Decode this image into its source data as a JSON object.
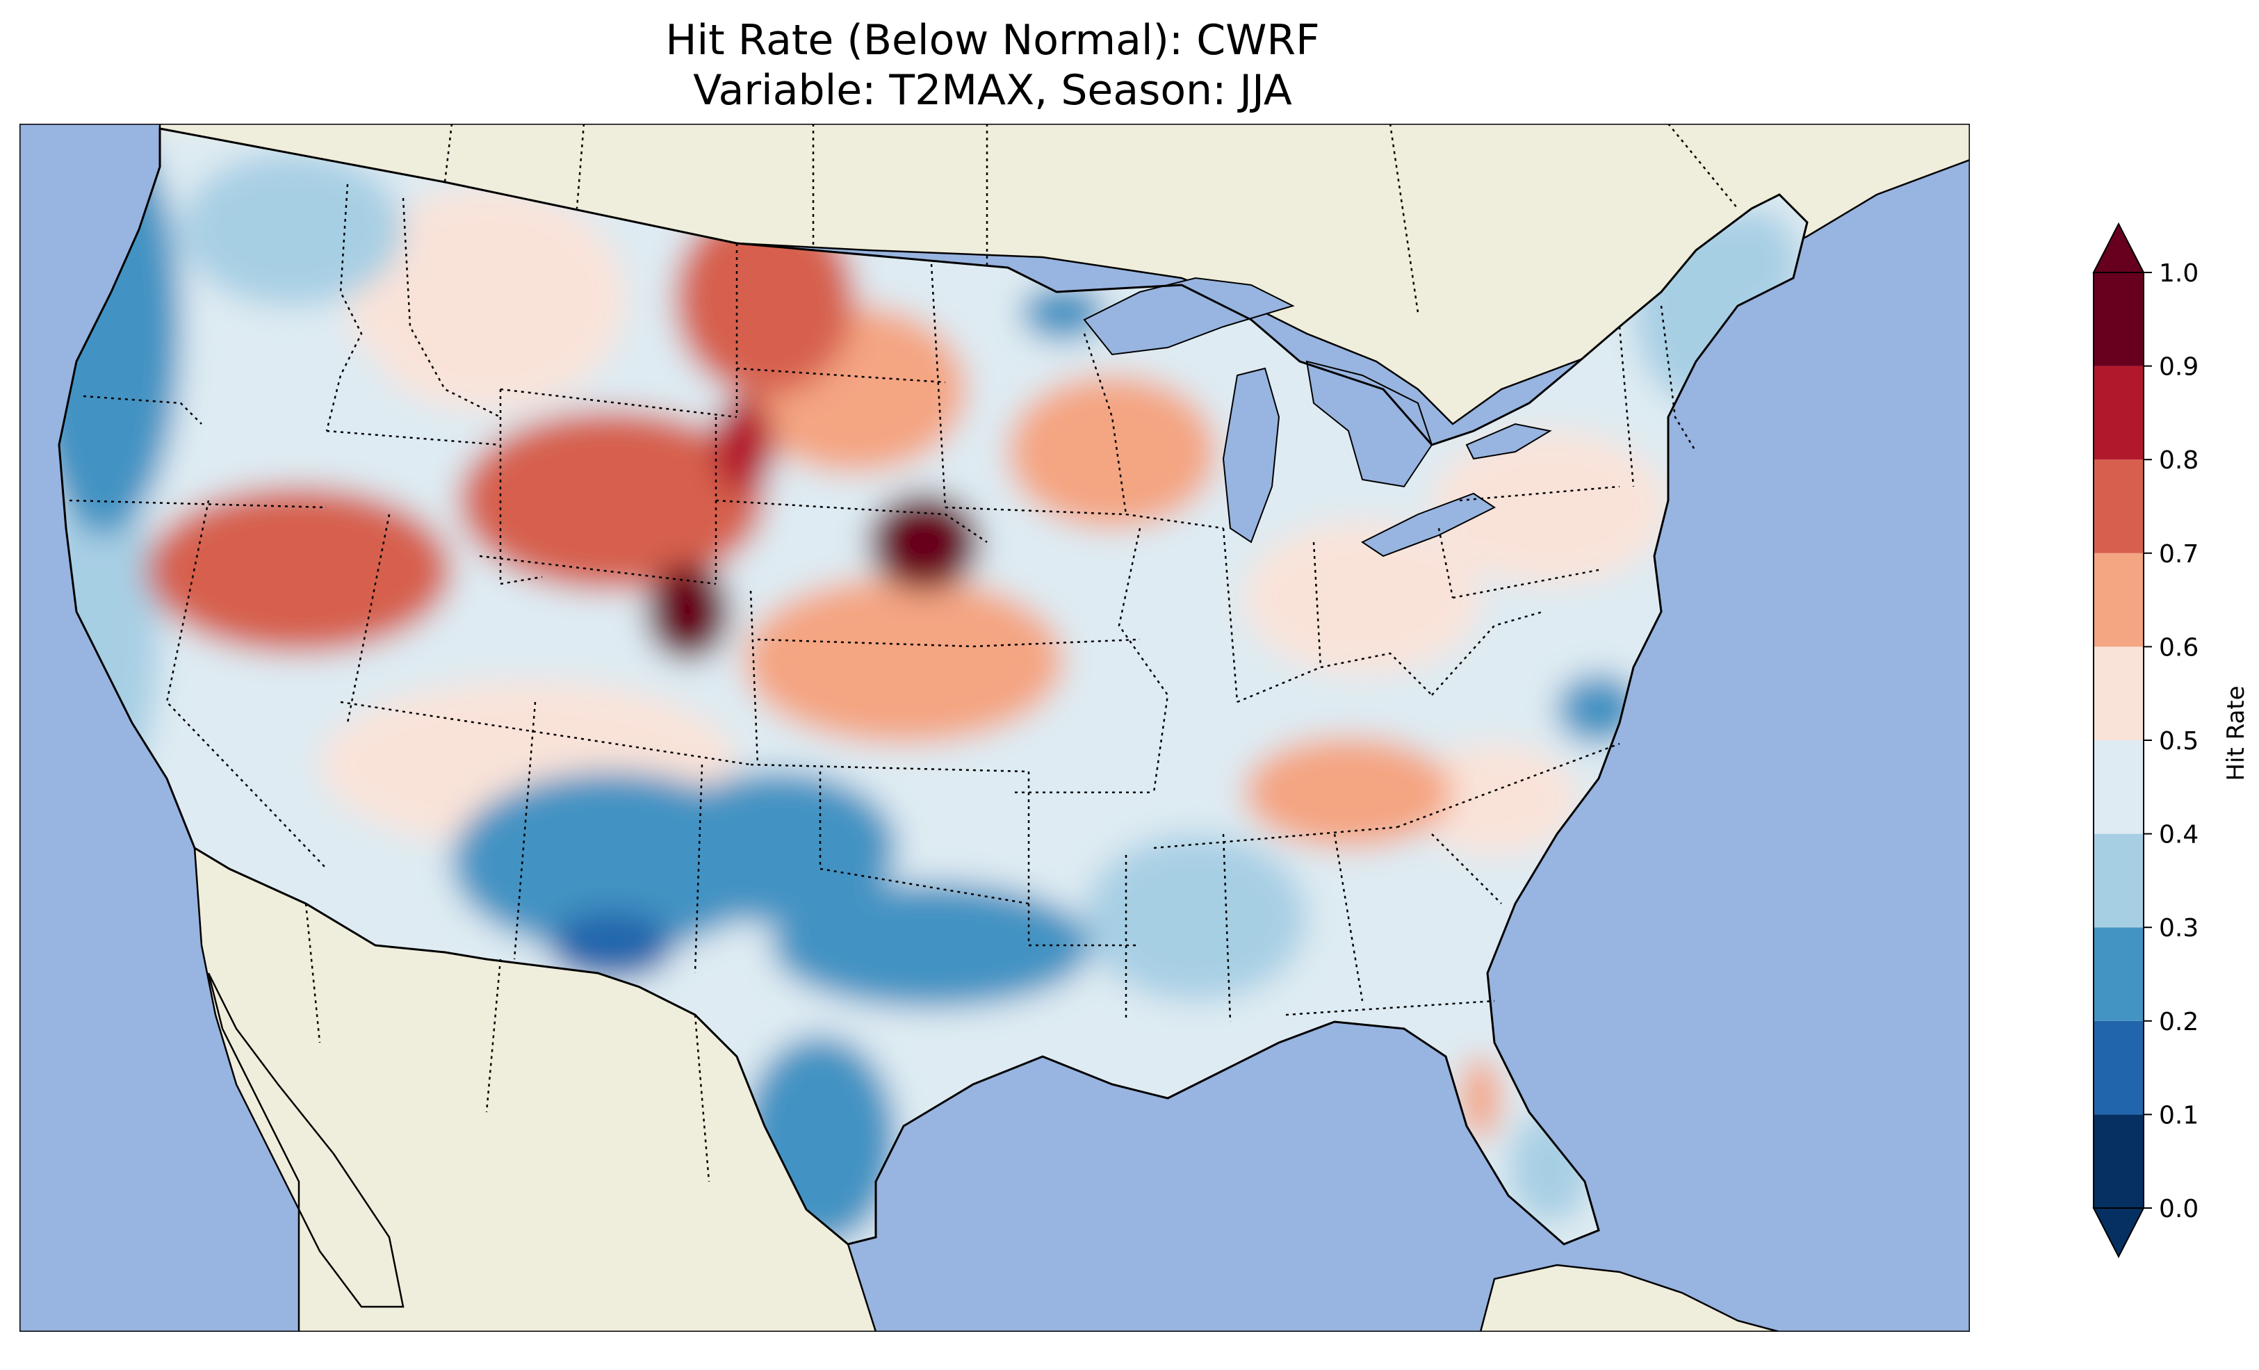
{
  "title": {
    "line1": "Hit Rate (Below Normal): CWRF",
    "line2": "Variable: T2MAX, Season: JJA"
  },
  "colors": {
    "ocean": "#98b4e0",
    "land": "#efeddb",
    "border": "#000000"
  },
  "colorbar": {
    "label": "Hit Rate",
    "extend": "both",
    "ticks": [
      "0.0",
      "0.1",
      "0.2",
      "0.3",
      "0.4",
      "0.5",
      "0.6",
      "0.7",
      "0.8",
      "0.9",
      "1.0"
    ],
    "bins": [
      {
        "from": 0.0,
        "to": 0.1,
        "color": "#053061"
      },
      {
        "from": 0.1,
        "to": 0.2,
        "color": "#2166ac"
      },
      {
        "from": 0.2,
        "to": 0.3,
        "color": "#4393c3"
      },
      {
        "from": 0.3,
        "to": 0.4,
        "color": "#a7cfe4"
      },
      {
        "from": 0.4,
        "to": 0.5,
        "color": "#deebf2"
      },
      {
        "from": 0.5,
        "to": 0.6,
        "color": "#f9e3d9"
      },
      {
        "from": 0.6,
        "to": 0.7,
        "color": "#f4a582"
      },
      {
        "from": 0.7,
        "to": 0.8,
        "color": "#d6604d"
      },
      {
        "from": 0.8,
        "to": 0.9,
        "color": "#b2182b"
      },
      {
        "from": 0.9,
        "to": 1.0,
        "color": "#67001f"
      }
    ],
    "under_color": "#053061",
    "over_color": "#67001f"
  },
  "field": {
    "description_levels": "approximate hit-rate field over CONUS",
    "regions": [
      {
        "name": "pacific-northwest-coast",
        "value": 0.28
      },
      {
        "name": "washington-interior",
        "value": 0.35
      },
      {
        "name": "oregon-interior",
        "value": 0.45
      },
      {
        "name": "california-coast",
        "value": 0.32
      },
      {
        "name": "california-central",
        "value": 0.42
      },
      {
        "name": "great-basin",
        "value": 0.72
      },
      {
        "name": "idaho-montana",
        "value": 0.52
      },
      {
        "name": "montana-east",
        "value": 0.72
      },
      {
        "name": "wyoming",
        "value": 0.75
      },
      {
        "name": "northern-wyoming-peak",
        "value": 0.88
      },
      {
        "name": "colorado-utah-peak",
        "value": 0.92
      },
      {
        "name": "nebraska-peak",
        "value": 0.95
      },
      {
        "name": "dakotas",
        "value": 0.68
      },
      {
        "name": "kansas",
        "value": 0.66
      },
      {
        "name": "minnesota-wisconsin",
        "value": 0.65
      },
      {
        "name": "upper-michigan",
        "value": 0.25
      },
      {
        "name": "arizona-new-mexico",
        "value": 0.55
      },
      {
        "name": "southwest-blue",
        "value": 0.25
      },
      {
        "name": "texas-panhandle",
        "value": 0.25
      },
      {
        "name": "west-texas-low",
        "value": 0.15
      },
      {
        "name": "south-texas",
        "value": 0.22
      },
      {
        "name": "oklahoma-north-texas",
        "value": 0.28
      },
      {
        "name": "louisiana-mississippi",
        "value": 0.3
      },
      {
        "name": "tennessee-kentucky",
        "value": 0.66
      },
      {
        "name": "midwest",
        "value": 0.48
      },
      {
        "name": "ohio-valley",
        "value": 0.52
      },
      {
        "name": "northeast",
        "value": 0.52
      },
      {
        "name": "new-england",
        "value": 0.38
      },
      {
        "name": "maine",
        "value": 0.32
      },
      {
        "name": "virginia-coast",
        "value": 0.25
      },
      {
        "name": "southeast",
        "value": 0.48
      },
      {
        "name": "georgia-carolina",
        "value": 0.56
      },
      {
        "name": "florida",
        "value": 0.42
      },
      {
        "name": "florida-west",
        "value": 0.62
      },
      {
        "name": "florida-south",
        "value": 0.35
      }
    ]
  }
}
